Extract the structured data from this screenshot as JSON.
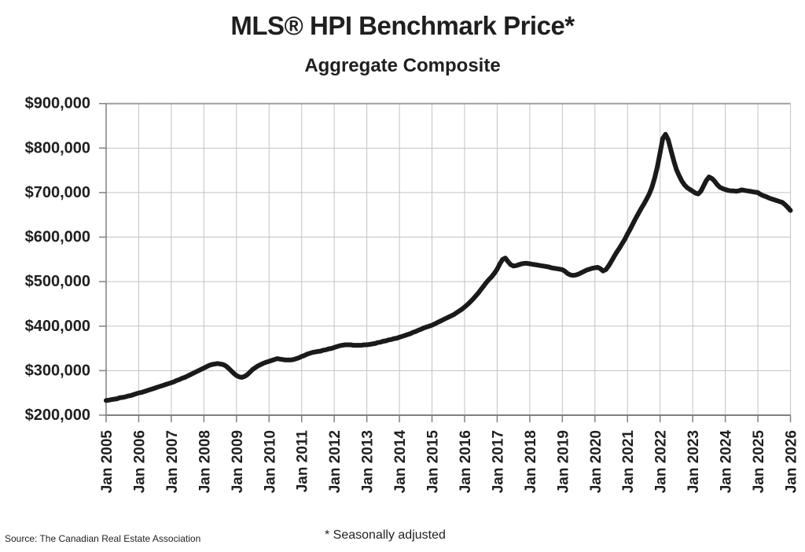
{
  "header": {
    "title": "MLS® HPI Benchmark Price*",
    "subtitle": "Aggregate Composite"
  },
  "footer": {
    "source": "Source: The Canadian Real Estate Association",
    "note": "* Seasonally adjusted"
  },
  "colors": {
    "line": "#1a1a1a",
    "gridline": "#c3c3c3",
    "axis": "#808080",
    "frame_top": "#a0a0a0",
    "text": "#1f1f1f",
    "background": "#ffffff"
  },
  "chart_data": {
    "type": "line",
    "title": "MLS® HPI Benchmark Price*",
    "subtitle": "Aggregate Composite",
    "series_name": "MLS HPI Aggregate Composite benchmark price (seasonally adjusted)",
    "x_frequency": "monthly",
    "x_start": "Jan 2005",
    "x_end": "Jan 2026",
    "x_tick_labels": [
      "Jan 2005",
      "Jan 2006",
      "Jan 2007",
      "Jan 2008",
      "Jan 2009",
      "Jan 2010",
      "Jan 2011",
      "Jan 2012",
      "Jan 2013",
      "Jan 2014",
      "Jan 2015",
      "Jan 2016",
      "Jan 2017",
      "Jan 2018",
      "Jan 2019",
      "Jan 2020",
      "Jan 2021",
      "Jan 2022",
      "Jan 2023",
      "Jan 2024",
      "Jan 2025",
      "Jan 2026"
    ],
    "y_tick_labels": [
      "$900,000",
      "$800,000",
      "$700,000",
      "$600,000",
      "$500,000",
      "$400,000",
      "$300,000",
      "$200,000"
    ],
    "ylim": [
      200000,
      900000
    ],
    "y_step": 100000,
    "grid": true,
    "legend": "none",
    "values_unit": "CAD",
    "monthly_values": [
      233000,
      234000,
      235000,
      236000,
      237000,
      239000,
      240000,
      241000,
      243000,
      244000,
      246000,
      248000,
      250000,
      251000,
      253000,
      255000,
      257000,
      259000,
      261000,
      263000,
      265000,
      267000,
      269000,
      271000,
      273000,
      275000,
      278000,
      280000,
      283000,
      285000,
      288000,
      291000,
      294000,
      297000,
      300000,
      303000,
      306000,
      309000,
      312000,
      314000,
      315000,
      316000,
      315000,
      314000,
      311000,
      306000,
      300000,
      294000,
      289000,
      286000,
      285000,
      287000,
      291000,
      297000,
      303000,
      307000,
      311000,
      314000,
      317000,
      319000,
      321000,
      323000,
      325000,
      327000,
      326000,
      325000,
      324000,
      324000,
      324000,
      325000,
      327000,
      329000,
      332000,
      334000,
      337000,
      339000,
      341000,
      342000,
      343000,
      344000,
      346000,
      347000,
      349000,
      350000,
      352000,
      354000,
      356000,
      357000,
      358000,
      358000,
      358000,
      357000,
      357000,
      357000,
      357000,
      358000,
      358000,
      359000,
      360000,
      361000,
      363000,
      364000,
      366000,
      367000,
      369000,
      370000,
      372000,
      373000,
      375000,
      377000,
      379000,
      381000,
      383000,
      386000,
      388000,
      391000,
      393000,
      396000,
      398000,
      400000,
      402000,
      405000,
      408000,
      411000,
      414000,
      417000,
      420000,
      423000,
      426000,
      430000,
      434000,
      438000,
      443000,
      448000,
      454000,
      460000,
      467000,
      474000,
      482000,
      490000,
      498000,
      505000,
      511000,
      519000,
      528000,
      540000,
      550000,
      553000,
      545000,
      538000,
      535000,
      536000,
      538000,
      540000,
      541000,
      541000,
      540000,
      539000,
      538000,
      537000,
      536000,
      535000,
      534000,
      533000,
      531000,
      530000,
      529000,
      528000,
      527000,
      523000,
      518000,
      515000,
      514000,
      515000,
      517000,
      520000,
      523000,
      526000,
      528000,
      530000,
      531000,
      532000,
      529000,
      524000,
      527000,
      535000,
      545000,
      556000,
      566000,
      575000,
      585000,
      595000,
      607000,
      618000,
      630000,
      642000,
      653000,
      664000,
      674000,
      685000,
      697000,
      712000,
      733000,
      758000,
      790000,
      822000,
      831000,
      818000,
      795000,
      772000,
      752000,
      738000,
      726000,
      717000,
      711000,
      707000,
      703000,
      699000,
      697000,
      703000,
      715000,
      727000,
      735000,
      732000,
      726000,
      718000,
      712000,
      709000,
      707000,
      705000,
      704000,
      704000,
      703000,
      704000,
      706000,
      705000,
      704000,
      703000,
      702000,
      701000,
      700000,
      696000,
      693000,
      691000,
      688000,
      686000,
      684000,
      682000,
      680000,
      678000,
      673000,
      667000,
      660000
    ]
  }
}
